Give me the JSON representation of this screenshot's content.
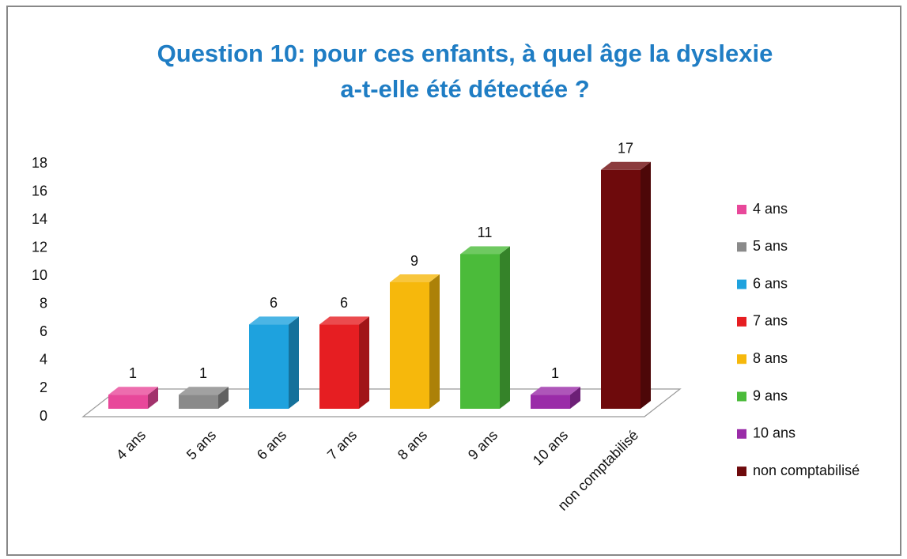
{
  "chart_data": {
    "type": "bar3d",
    "title": [
      "Question 10: pour ces enfants, à quel âge la dyslexie",
      "a-t-elle été détectée ?"
    ],
    "categories": [
      "4 ans",
      "5 ans",
      "6 ans",
      "7 ans",
      "8 ans",
      "9 ans",
      "10 ans",
      "non comptabilisé"
    ],
    "values": [
      1,
      1,
      6,
      6,
      9,
      11,
      1,
      17
    ],
    "colors": [
      "#e8489a",
      "#8a8a8a",
      "#1ea2de",
      "#e61e22",
      "#f6b80c",
      "#4bbb3a",
      "#9a2ca8",
      "#6e0a0c"
    ],
    "ylim": [
      0,
      18
    ],
    "yticks": [
      0,
      2,
      4,
      6,
      8,
      10,
      12,
      14,
      16,
      18
    ],
    "grid": false,
    "legend": "right"
  }
}
